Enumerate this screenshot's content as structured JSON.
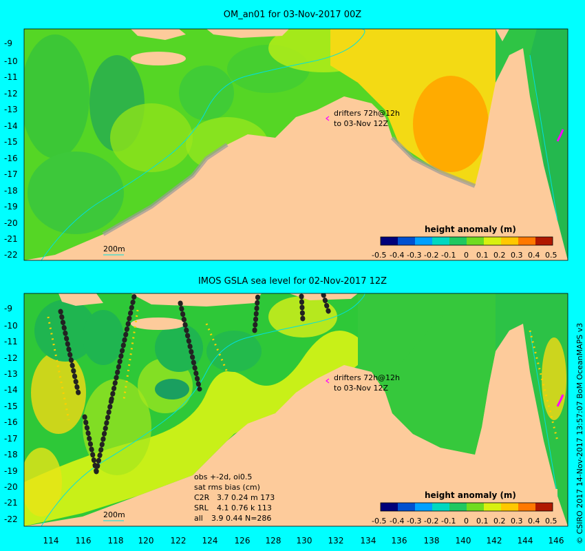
{
  "panels": [
    {
      "title": "OM_an01 for 03-Nov-2017 00Z",
      "drifter_label_1": "drifters 72h@12h",
      "drifter_label_2": "to 03-Nov 12Z",
      "isobath_label": "200m",
      "legend_title": "height anomaly (m)",
      "legend_ticks": [
        "-0.5",
        "-0.4",
        "-0.3",
        "-0.2",
        "-0.1",
        "0",
        "0.1",
        "0.2",
        "0.3",
        "0.4",
        "0.5"
      ],
      "y_ticks": [
        "-9",
        "-10",
        "-11",
        "-12",
        "-13",
        "-14",
        "-15",
        "-16",
        "-17",
        "-18",
        "-19",
        "-20",
        "-21",
        "-22"
      ]
    },
    {
      "title": "IMOS GSLA sea level  for 02-Nov-2017 12Z",
      "drifter_label_1": "drifters 72h@12h",
      "drifter_label_2": "to 03-Nov 12Z",
      "isobath_label": "200m",
      "legend_title": "height anomaly (m)",
      "legend_ticks": [
        "-0.5",
        "-0.4",
        "-0.3",
        "-0.2",
        "-0.1",
        "0",
        "0.1",
        "0.2",
        "0.3",
        "0.4",
        "0.5"
      ],
      "y_ticks": [
        "-9",
        "-10",
        "-11",
        "-12",
        "-13",
        "-14",
        "-15",
        "-16",
        "-17",
        "-18",
        "-19",
        "-20",
        "-21",
        "-22"
      ],
      "stats": {
        "line1": "obs +-2d, oi0.5",
        "line2": "sat rms bias (cm)",
        "rows": [
          {
            "name": "C2R",
            "values": "3.7 0.24 m 173"
          },
          {
            "name": "SRL",
            "values": "4.1 0.76 k 113"
          },
          {
            "name": "all",
            "values": "3.9 0.44 N=286"
          }
        ]
      }
    }
  ],
  "x_ticks": [
    "114",
    "116",
    "118",
    "120",
    "122",
    "124",
    "126",
    "128",
    "130",
    "132",
    "134",
    "136",
    "138",
    "140",
    "142",
    "144",
    "146"
  ],
  "credit": "© CSIRO 2017  14-Nov-2017 13:57:07 BoM OceanMAPS v3",
  "colors": {
    "land": "#fdcb9b",
    "shelf_green": "#55d625",
    "ocean_green": "#2ec838",
    "yellow_green": "#c8f018",
    "yellow": "#f3da14",
    "orange": "#ff9f00",
    "background": "#00ffff"
  }
}
